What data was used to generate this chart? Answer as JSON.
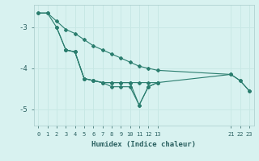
{
  "xlabel": "Humidex (Indice chaleur)",
  "background_color": "#d8f2f0",
  "grid_color": "#c8e8e5",
  "line_color": "#2a7d6e",
  "tick_color": "#2a6060",
  "xlim": [
    -0.5,
    23.5
  ],
  "ylim": [
    -5.4,
    -2.45
  ],
  "yticks": [
    -5,
    -4,
    -3
  ],
  "xticks": [
    0,
    1,
    2,
    3,
    4,
    5,
    6,
    7,
    8,
    9,
    10,
    11,
    12,
    13,
    21,
    22,
    23
  ],
  "lines": [
    {
      "x": [
        0,
        1,
        2,
        3,
        4,
        5,
        6,
        7,
        8,
        9,
        10,
        11,
        12,
        13,
        21,
        22,
        23
      ],
      "y": [
        -2.65,
        -2.65,
        -2.85,
        -3.05,
        -3.15,
        -3.3,
        -3.45,
        -3.55,
        -3.65,
        -3.75,
        -3.85,
        -3.95,
        -4.0,
        -4.05,
        -4.15,
        -4.3,
        -4.55
      ]
    },
    {
      "x": [
        2,
        3,
        4,
        5,
        6,
        7,
        8,
        9,
        10,
        11,
        12,
        13,
        21,
        22,
        23
      ],
      "y": [
        -3.0,
        -3.55,
        -3.6,
        -4.25,
        -4.3,
        -4.35,
        -4.35,
        -4.35,
        -4.35,
        -4.35,
        -4.35,
        -4.35,
        -4.15,
        -4.3,
        -4.55
      ]
    },
    {
      "x": [
        3,
        4,
        5,
        6,
        7,
        8,
        9,
        10,
        11,
        12,
        13
      ],
      "y": [
        -3.55,
        -3.6,
        -4.25,
        -4.3,
        -4.35,
        -4.45,
        -4.45,
        -4.45,
        -4.9,
        -4.45,
        -4.35
      ]
    },
    {
      "x": [
        0,
        1,
        2,
        3,
        4,
        5,
        6,
        7,
        8,
        9,
        10,
        11,
        12,
        13
      ],
      "y": [
        -2.65,
        -2.65,
        -3.0,
        -3.55,
        -3.6,
        -4.25,
        -4.3,
        -4.35,
        -4.35,
        -4.35,
        -4.35,
        -4.9,
        -4.45,
        -4.35
      ]
    }
  ]
}
